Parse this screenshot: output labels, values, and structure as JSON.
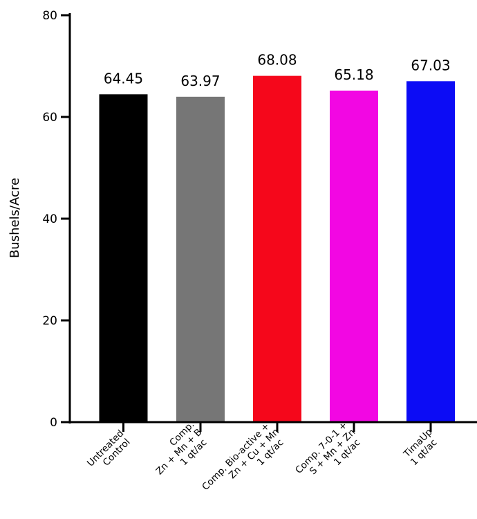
{
  "chart_data": {
    "type": "bar",
    "title": "",
    "xlabel": "",
    "ylabel": "Bushels/Acre",
    "ylim": [
      0,
      80
    ],
    "yticks": [
      0,
      20,
      40,
      60,
      80
    ],
    "grid": false,
    "categories": [
      [
        "Untreated",
        "Control"
      ],
      [
        "Comp.",
        "Zn + Mn + B",
        "1 qt/ac"
      ],
      [
        "Comp. Bio-active +",
        "Zn + Cu + Mn",
        "1 qt/ac"
      ],
      [
        "Comp. 7-0-1 +",
        "S + Mn + Zn",
        "1 qt/ac"
      ],
      [
        "TimaUp",
        "1 qt/ac"
      ]
    ],
    "values": [
      64.45,
      63.97,
      68.08,
      65.18,
      67.03
    ],
    "value_labels": [
      "64.45",
      "63.97",
      "68.08",
      "65.18",
      "67.03"
    ],
    "colors": [
      "#000000",
      "#767676",
      "#f5071b",
      "#f207e3",
      "#0c0cf5"
    ]
  }
}
